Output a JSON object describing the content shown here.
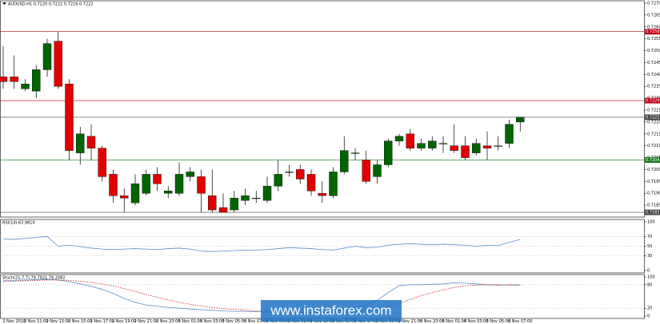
{
  "chart_data": [
    {
      "type": "candlestick",
      "title": "AUDUSD,H1  0.7220 0.7222 0.7216 0.7222",
      "categories": [
        null,
        "2 Nov 2018",
        null,
        "2 Nov 11:00",
        null,
        "2 Nov 13:00",
        null,
        "2 Nov 15:00",
        null,
        "2 Nov 17:00",
        null,
        "2 Nov 19:00",
        null,
        "2 Nov 21:00",
        null,
        "2 Nov 23:00",
        null,
        "5 Nov 01:00",
        null,
        "5 Nov 03:00",
        null,
        "5 Nov 05:00",
        null,
        "5 Nov 07:00",
        null,
        "5 Nov 09:00",
        null,
        "5 Nov 11:00",
        null,
        "5 Nov 13:00",
        null,
        "5 Nov 15:00",
        null,
        "5 Nov 17:00",
        null,
        "5 Nov 19:00",
        null,
        "5 Nov 21:00",
        null,
        "5 Nov 23:00",
        null,
        "6 Nov 01:00",
        null,
        "6 Nov 03:00",
        null,
        "6 Nov 05:00",
        null,
        "6 Nov 07:00"
      ],
      "open": [
        0.7239,
        0.7239,
        0.7234,
        0.7233,
        0.7242,
        0.7254,
        0.7236,
        0.7207,
        0.7214,
        0.7209,
        0.7198,
        0.7189,
        0.7186,
        0.719,
        0.7198,
        0.719,
        0.719,
        0.7197,
        0.7197,
        0.7189,
        0.7184,
        0.7183,
        0.7187,
        0.7188,
        0.7187,
        0.7193,
        0.7199,
        0.72,
        0.7198,
        0.719,
        0.7189,
        0.7199,
        0.7207,
        0.7204,
        0.7197,
        0.7202,
        0.7212,
        0.7215,
        0.7209,
        0.7209,
        0.7211,
        0.721,
        0.721,
        0.7207,
        0.721,
        0.721,
        0.7211,
        0.722
      ],
      "high": [
        0.7252,
        0.7248,
        0.7238,
        0.7244,
        0.7255,
        0.7258,
        0.7238,
        0.7218,
        0.7219,
        0.721,
        0.72,
        0.7192,
        0.7198,
        0.72,
        0.7201,
        0.7193,
        0.7203,
        0.7201,
        0.72,
        0.72,
        0.719,
        0.7191,
        0.7192,
        0.7191,
        0.7197,
        0.7204,
        0.7202,
        0.7202,
        0.72,
        0.7195,
        0.7201,
        0.7214,
        0.7209,
        0.7208,
        0.7204,
        0.7213,
        0.7215,
        0.7217,
        0.7213,
        0.7214,
        0.7214,
        0.7219,
        0.7214,
        0.7213,
        0.7216,
        0.7214,
        0.7221,
        0.7222
      ],
      "low": [
        0.7234,
        0.7234,
        0.7233,
        0.723,
        0.7239,
        0.7234,
        0.7204,
        0.7202,
        0.7204,
        0.7195,
        0.7186,
        0.7182,
        0.7185,
        0.7189,
        0.7191,
        0.7188,
        0.7189,
        0.7195,
        0.7182,
        0.7182,
        0.7182,
        0.7182,
        0.7185,
        0.7186,
        0.7186,
        0.7191,
        0.7197,
        0.7194,
        0.7189,
        0.7186,
        0.7188,
        0.7198,
        0.7204,
        0.7194,
        0.7194,
        0.7201,
        0.721,
        0.7208,
        0.7208,
        0.7208,
        0.7207,
        0.7207,
        0.7204,
        0.7206,
        0.7204,
        0.7208,
        0.7209,
        0.7216
      ],
      "close": [
        0.7237,
        0.7237,
        0.7236,
        0.7242,
        0.7253,
        0.7235,
        0.7208,
        0.7215,
        0.7209,
        0.7197,
        0.7189,
        0.7188,
        0.7194,
        0.7198,
        0.7194,
        0.7191,
        0.7198,
        0.7199,
        0.719,
        0.7183,
        0.7182,
        0.7188,
        0.7189,
        0.7188,
        0.7193,
        0.7198,
        0.7199,
        0.7196,
        0.7191,
        0.7189,
        0.7199,
        0.7208,
        0.7207,
        0.7195,
        0.7202,
        0.7212,
        0.7214,
        0.7209,
        0.7211,
        0.7212,
        0.7211,
        0.7208,
        0.7205,
        0.7211,
        0.7209,
        0.721,
        0.7219,
        0.7222
      ],
      "up_color": "#006400",
      "down_color": "#e00000",
      "ylim": [
        0.718,
        0.7271
      ],
      "yticks": [
        {
          "value": 0.727,
          "label": "0.7270"
        },
        0.7265,
        {
          "value": 0.726,
          "label": "0.7260"
        },
        0.7255,
        {
          "value": 0.725,
          "label": "0.7250"
        },
        0.7245,
        {
          "value": 0.724,
          "label": "0.7240"
        },
        0.7235,
        {
          "value": 0.723,
          "label": "0.7230"
        },
        0.7225,
        {
          "value": 0.722,
          "label": "0.7220"
        },
        0.7215,
        {
          "value": 0.721,
          "label": "0.7210"
        },
        0.7205,
        {
          "value": 0.72,
          "label": "0.7200"
        },
        0.7195,
        {
          "value": 0.719,
          "label": "0.7190"
        },
        0.7185
      ],
      "levels": [
        {
          "value": 0.7258,
          "color": "#c0001a"
        },
        {
          "value": 0.7229,
          "color": "#c0001a"
        },
        {
          "value": 0.7222,
          "color": "#444444"
        },
        {
          "value": 0.7204,
          "color": "#1a7a1a"
        },
        {
          "value": 0.7182,
          "color": "#444444"
        }
      ]
    },
    {
      "type": "line",
      "title": "RSI(14) 63.9810",
      "ylim": [
        0,
        100
      ],
      "yticks": [
        0,
        30,
        50,
        70,
        100
      ],
      "grid": "dotted",
      "series": [
        {
          "name": "RSI(14)",
          "color": "#5b8fc7",
          "values": [
            65,
            64,
            66,
            68,
            70,
            50,
            52,
            49,
            46,
            44,
            43,
            44,
            45,
            44,
            43,
            45,
            46,
            44,
            40,
            39,
            40,
            41,
            42,
            42,
            43,
            45,
            47,
            46,
            45,
            43,
            42,
            46,
            50,
            47,
            48,
            52,
            54,
            55,
            54,
            53,
            54,
            53,
            52,
            50,
            52,
            51,
            58,
            63.981
          ]
        }
      ]
    },
    {
      "type": "line",
      "title": "Stoch(21,7,7) 79.7921 78.2082",
      "ylim": [
        0,
        100
      ],
      "yticks": [
        0,
        20,
        80,
        100
      ],
      "grid": "dotted",
      "series": [
        {
          "name": "Main",
          "color": "#5b8fc7",
          "dash": false,
          "values": [
            90,
            91,
            92,
            93,
            94,
            92,
            88,
            82,
            76,
            68,
            58,
            45,
            35,
            28,
            25,
            22,
            20,
            18,
            16,
            15,
            13,
            12,
            12,
            11,
            10,
            10,
            9,
            8,
            8,
            9,
            12,
            18,
            22,
            28,
            40,
            60,
            78,
            80,
            80,
            81,
            82,
            85,
            84,
            82,
            80,
            79,
            80,
            79.7921
          ]
        },
        {
          "name": "Signal",
          "color": "#d02020",
          "dash": true,
          "values": [
            88,
            89,
            90,
            91,
            92,
            92,
            91,
            89,
            86,
            82,
            77,
            70,
            63,
            55,
            48,
            41,
            35,
            30,
            26,
            22,
            19,
            17,
            15,
            13,
            12,
            11,
            10,
            10,
            9,
            9,
            9,
            10,
            11,
            13,
            17,
            24,
            32,
            42,
            52,
            60,
            67,
            73,
            77,
            79,
            80,
            80,
            79,
            78.2082
          ]
        }
      ]
    }
  ],
  "watermark": "www.instaforex.com"
}
